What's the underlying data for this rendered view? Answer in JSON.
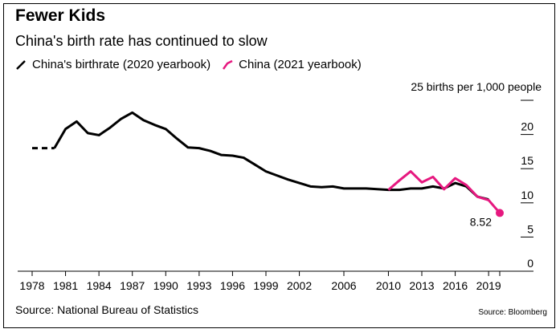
{
  "chart_data": {
    "type": "line",
    "title": "Fewer Kids",
    "subtitle": "China's birth rate has continued to slow",
    "ylabel": "births per 1,000 people",
    "ylim": [
      0,
      25
    ],
    "xlim": [
      1978,
      2020
    ],
    "x_ticks": [
      "1978",
      "1981",
      "1984",
      "1987",
      "1990",
      "1993",
      "1996",
      "1999",
      "2002",
      "2006",
      "2010",
      "2013",
      "2016",
      "2019"
    ],
    "y_ticks": [
      0,
      5,
      10,
      15,
      20,
      25
    ],
    "y_top_label": "25 births per 1,000 people",
    "grid": false,
    "legend_position": "top-left",
    "series": [
      {
        "name": "China's birthrate (2020 yearbook)",
        "color": "#000000",
        "dashed_until": 1980,
        "x": [
          1978,
          1979,
          1980,
          1981,
          1982,
          1983,
          1984,
          1985,
          1986,
          1987,
          1988,
          1989,
          1990,
          1991,
          1992,
          1993,
          1994,
          1995,
          1996,
          1997,
          1998,
          1999,
          2000,
          2001,
          2002,
          2003,
          2004,
          2005,
          2006,
          2007,
          2008,
          2009,
          2010,
          2011,
          2012,
          2013,
          2014,
          2015,
          2016,
          2017,
          2018,
          2019
        ],
        "y": [
          18.0,
          18.0,
          18.0,
          20.8,
          21.9,
          20.2,
          19.9,
          21.0,
          22.3,
          23.2,
          22.1,
          21.4,
          20.8,
          19.4,
          18.1,
          18.0,
          17.6,
          17.0,
          16.9,
          16.6,
          15.6,
          14.6,
          14.0,
          13.4,
          12.9,
          12.4,
          12.3,
          12.4,
          12.1,
          12.1,
          12.1,
          12.0,
          11.9,
          11.9,
          12.1,
          12.1,
          12.4,
          12.1,
          12.9,
          12.4,
          10.9,
          10.5
        ]
      },
      {
        "name": "China (2021 yearbook)",
        "color": "#e6187f",
        "x": [
          2010,
          2011,
          2012,
          2013,
          2014,
          2015,
          2016,
          2017,
          2018,
          2019,
          2020
        ],
        "y": [
          11.9,
          13.3,
          14.6,
          13.0,
          13.8,
          11.99,
          13.6,
          12.6,
          10.9,
          10.4,
          8.52
        ]
      }
    ],
    "annotations": [
      {
        "label": "8.52",
        "x": 2020,
        "y": 8.52
      }
    ],
    "source": "Source: National Bureau of Statistics",
    "credit": "Source: Bloomberg"
  }
}
